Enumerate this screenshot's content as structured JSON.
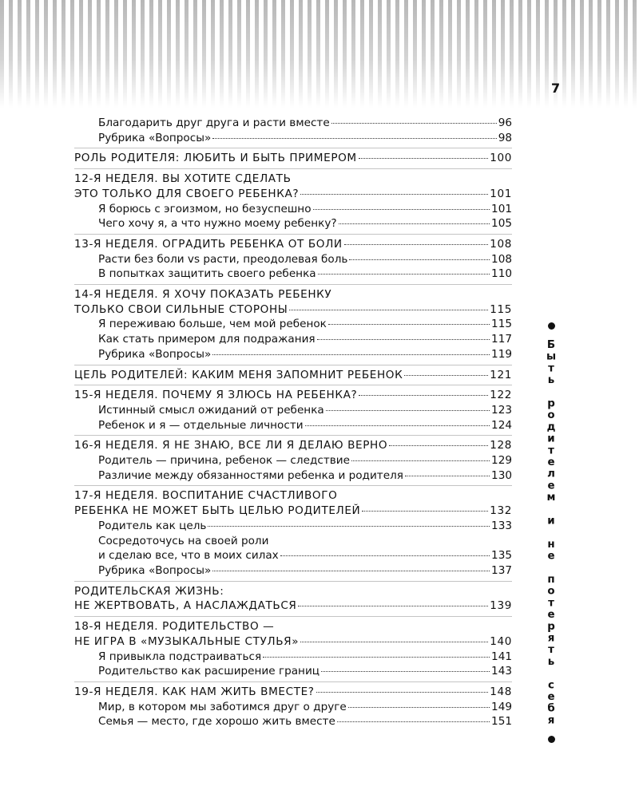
{
  "page_number": "7",
  "side_title": "Быть родителем и не потерять себя",
  "groups": [
    {
      "items": [
        {
          "lines": [
            "Благодарить друг друга и расти вместе"
          ],
          "page": "96"
        },
        {
          "lines": [
            "Рубрика «Вопросы»"
          ],
          "page": "98"
        }
      ]
    },
    {
      "heading": {
        "lines": [
          "РОЛЬ РОДИТЕЛЯ: ЛЮБИТЬ И БЫТЬ ПРИМЕРОМ"
        ],
        "page": "100"
      },
      "items": []
    },
    {
      "heading": {
        "lines": [
          "12-Я НЕДЕЛЯ. ВЫ ХОТИТЕ СДЕЛАТЬ",
          "ЭТО ТОЛЬКО ДЛЯ СВОЕГО РЕБЕНКА?"
        ],
        "page": "101"
      },
      "items": [
        {
          "lines": [
            "Я борюсь с эгоизмом, но безуспешно"
          ],
          "page": "101"
        },
        {
          "lines": [
            "Чего хочу я, а что нужно моему ребенку?"
          ],
          "page": "105"
        }
      ]
    },
    {
      "heading": {
        "lines": [
          "13-Я НЕДЕЛЯ. ОГРАДИТЬ РЕБЕНКА ОТ БОЛИ"
        ],
        "page": "108"
      },
      "items": [
        {
          "lines": [
            "Расти без боли vs расти, преодолевая боль"
          ],
          "page": "108"
        },
        {
          "lines": [
            "В попытках защитить своего ребенка"
          ],
          "page": "110"
        }
      ]
    },
    {
      "heading": {
        "lines": [
          "14-Я НЕДЕЛЯ. Я ХОЧУ ПОКАЗАТЬ РЕБЕНКУ",
          "ТОЛЬКО СВОИ СИЛЬНЫЕ СТОРОНЫ"
        ],
        "page": "115"
      },
      "items": [
        {
          "lines": [
            "Я переживаю больше, чем мой ребенок"
          ],
          "page": "115"
        },
        {
          "lines": [
            "Как стать примером для подражания"
          ],
          "page": "117"
        },
        {
          "lines": [
            "Рубрика «Вопросы»"
          ],
          "page": "119"
        }
      ]
    },
    {
      "heading": {
        "lines": [
          "ЦЕЛЬ РОДИТЕЛЕЙ: КАКИМ МЕНЯ ЗАПОМНИТ РЕБЕНОК"
        ],
        "page": "121"
      },
      "items": []
    },
    {
      "heading": {
        "lines": [
          "15-Я НЕДЕЛЯ. ПОЧЕМУ Я ЗЛЮСЬ НА РЕБЕНКА?"
        ],
        "page": "122"
      },
      "items": [
        {
          "lines": [
            "Истинный смысл ожиданий от ребенка"
          ],
          "page": "123"
        },
        {
          "lines": [
            "Ребенок и я — отдельные личности"
          ],
          "page": "124"
        }
      ]
    },
    {
      "heading": {
        "lines": [
          "16-Я НЕДЕЛЯ. Я НЕ ЗНАЮ, ВСЕ ЛИ Я ДЕЛАЮ ВЕРНО"
        ],
        "page": "128"
      },
      "items": [
        {
          "lines": [
            "Родитель — причина, ребенок — следствие"
          ],
          "page": "129"
        },
        {
          "lines": [
            "Различие между обязанностями ребенка и родителя"
          ],
          "page": "130"
        }
      ]
    },
    {
      "heading": {
        "lines": [
          "17-Я НЕДЕЛЯ. ВОСПИТАНИЕ СЧАСТЛИВОГО",
          "РЕБЕНКА НЕ МОЖЕТ БЫТЬ ЦЕЛЬЮ РОДИТЕЛЕЙ"
        ],
        "page": "132"
      },
      "items": [
        {
          "lines": [
            "Родитель как цель"
          ],
          "page": "133"
        },
        {
          "lines": [
            "Сосредоточусь на своей роли",
            "и сделаю все, что в моих силах"
          ],
          "page": "135"
        },
        {
          "lines": [
            "Рубрика «Вопросы»"
          ],
          "page": "137"
        }
      ]
    },
    {
      "heading": {
        "lines": [
          "РОДИТЕЛЬСКАЯ ЖИЗНЬ:",
          "НЕ ЖЕРТВОВАТЬ, А НАСЛАЖДАТЬСЯ"
        ],
        "page": "139"
      },
      "items": []
    },
    {
      "heading": {
        "lines": [
          "18-Я НЕДЕЛЯ. РОДИТЕЛЬСТВО —",
          "НЕ ИГРА В «МУЗЫКАЛЬНЫЕ СТУЛЬЯ»"
        ],
        "page": "140"
      },
      "items": [
        {
          "lines": [
            "Я привыкла подстраиваться"
          ],
          "page": "141"
        },
        {
          "lines": [
            "Родительство как расширение границ"
          ],
          "page": "143"
        }
      ]
    },
    {
      "heading": {
        "lines": [
          "19-Я НЕДЕЛЯ. КАК НАМ ЖИТЬ ВМЕСТЕ?"
        ],
        "page": "148"
      },
      "items": [
        {
          "lines": [
            "Мир, в котором мы заботимся друг о друге"
          ],
          "page": "149"
        },
        {
          "lines": [
            "Семья — место, где хорошо жить вместе"
          ],
          "page": "151"
        }
      ]
    }
  ]
}
